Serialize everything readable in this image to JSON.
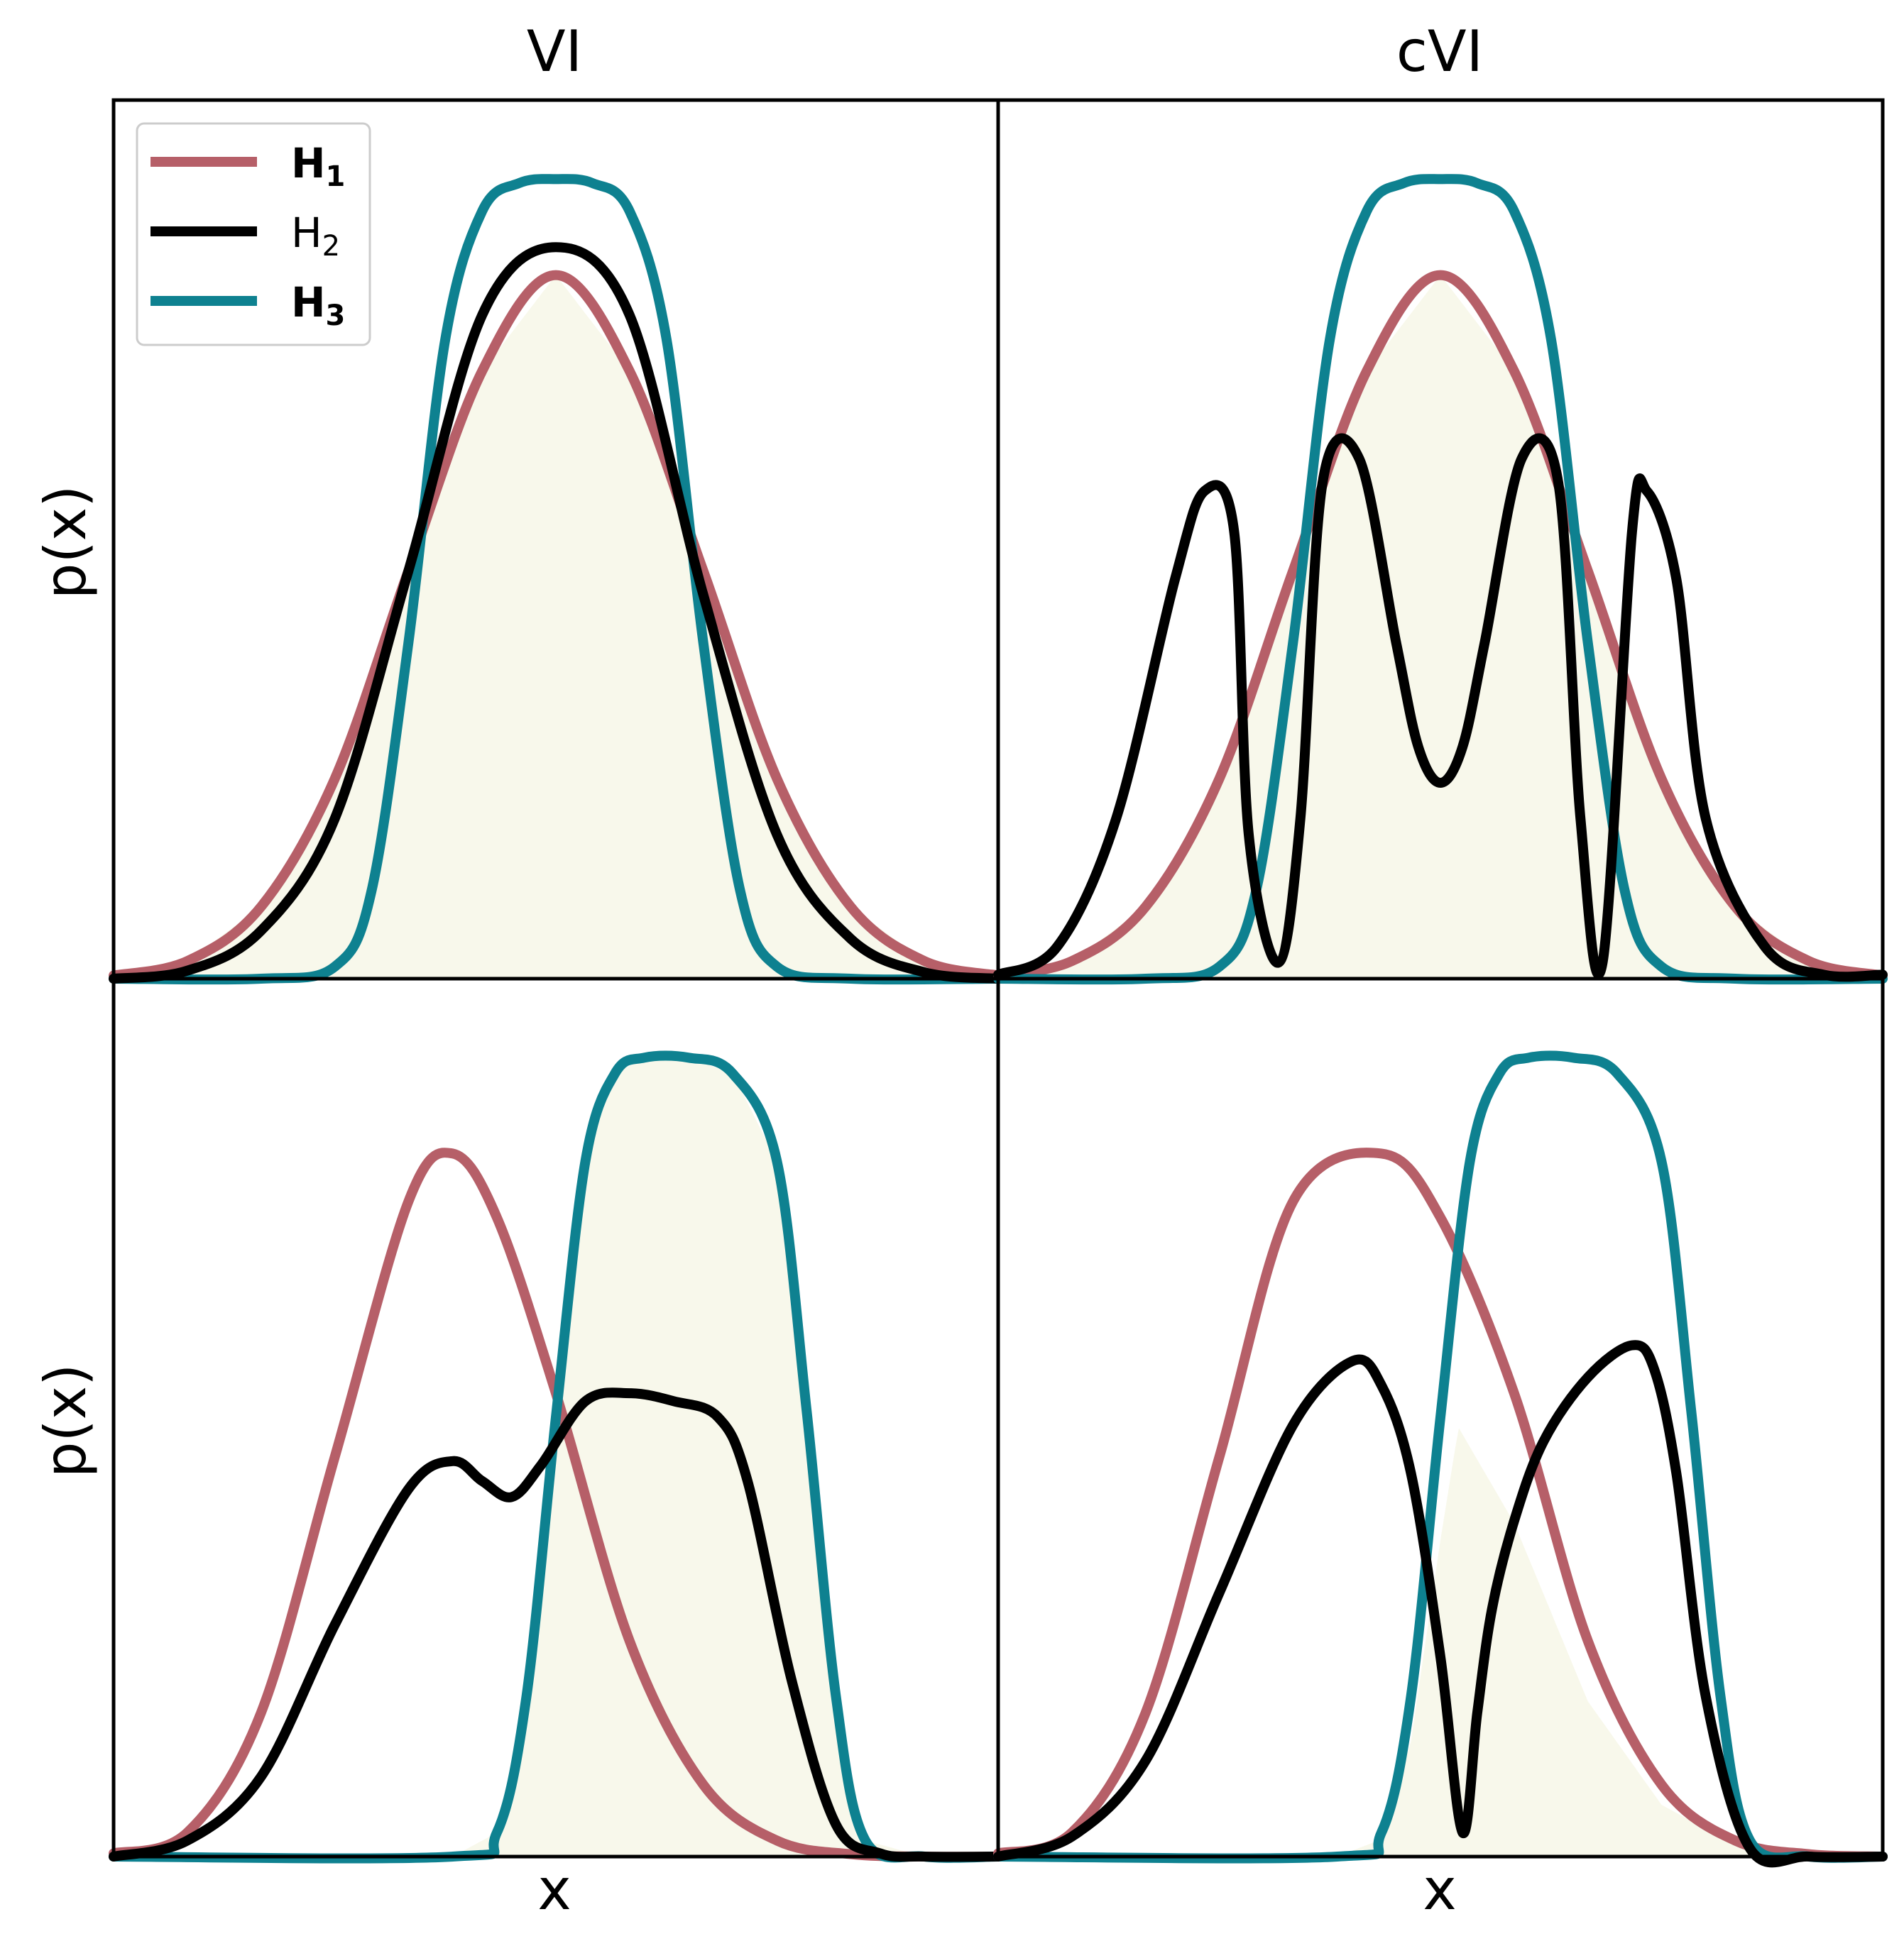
{
  "colors": {
    "h1": "#B65F68",
    "h2": "#000000",
    "h3": "#0E8190",
    "fill": "#F8F8EB"
  },
  "chart_data": [
    {
      "type": "line",
      "panel": "top-left",
      "title": "VI",
      "ylabel": "p(x)",
      "xlabel": "",
      "xlim": [
        -3.0,
        3.0
      ],
      "ylim": [
        0,
        1.0
      ],
      "shaded": "target density (same as H1)",
      "series": [
        {
          "name": "H1",
          "key": "h1",
          "x": [
            -3.0,
            -2.5,
            -2.0,
            -1.5,
            -1.0,
            -0.5,
            0.0,
            0.5,
            1.0,
            1.5,
            2.0,
            2.5,
            3.0
          ],
          "y": [
            0.004,
            0.022,
            0.09,
            0.25,
            0.51,
            0.76,
            0.88,
            0.76,
            0.51,
            0.25,
            0.09,
            0.022,
            0.004
          ]
        },
        {
          "name": "H2",
          "key": "h2",
          "x": [
            -3.0,
            -2.5,
            -2.0,
            -1.5,
            -1.0,
            -0.5,
            0.0,
            0.5,
            1.0,
            1.5,
            2.0,
            2.5,
            3.0
          ],
          "y": [
            0.0,
            0.01,
            0.06,
            0.2,
            0.51,
            0.83,
            0.915,
            0.83,
            0.48,
            0.18,
            0.05,
            0.008,
            0.0
          ]
        },
        {
          "name": "H3",
          "key": "h3",
          "x": [
            -3.0,
            -2.0,
            -1.5,
            -1.25,
            -1.0,
            -0.75,
            -0.5,
            -0.25,
            0.0,
            0.25,
            0.5,
            0.75,
            1.0,
            1.25,
            1.5,
            2.0,
            3.0
          ],
          "y": [
            0.0,
            0.0,
            0.015,
            0.11,
            0.42,
            0.8,
            0.96,
            0.995,
            1.0,
            0.995,
            0.96,
            0.8,
            0.42,
            0.11,
            0.015,
            0.0,
            0.0
          ]
        }
      ]
    },
    {
      "type": "line",
      "panel": "top-right",
      "title": "cVI",
      "ylabel": "",
      "xlabel": "",
      "xlim": [
        -3.0,
        3.0
      ],
      "ylim": [
        0,
        1.0
      ],
      "shaded": "target density (same as H1)",
      "series": [
        {
          "name": "H1",
          "key": "h1",
          "x": [
            -3.0,
            -2.5,
            -2.0,
            -1.5,
            -1.0,
            -0.5,
            0.0,
            0.5,
            1.0,
            1.5,
            2.0,
            2.5,
            3.0
          ],
          "y": [
            0.004,
            0.022,
            0.09,
            0.25,
            0.51,
            0.76,
            0.88,
            0.76,
            0.51,
            0.25,
            0.09,
            0.022,
            0.004
          ]
        },
        {
          "name": "H2",
          "key": "h2",
          "x": [
            -3.0,
            -2.6,
            -2.2,
            -1.8,
            -1.6,
            -1.4,
            -1.3,
            -1.1,
            -0.95,
            -0.8,
            -0.55,
            -0.3,
            -0.15,
            0.0,
            0.15,
            0.3,
            0.55,
            0.8,
            0.95,
            1.1,
            1.3,
            1.4,
            1.6,
            1.8,
            2.2,
            2.6,
            3.0
          ],
          "y": [
            0.005,
            0.04,
            0.2,
            0.5,
            0.61,
            0.56,
            0.18,
            0.02,
            0.2,
            0.62,
            0.65,
            0.42,
            0.29,
            0.245,
            0.29,
            0.42,
            0.65,
            0.62,
            0.2,
            0.02,
            0.56,
            0.61,
            0.5,
            0.2,
            0.04,
            0.005,
            0.005
          ]
        },
        {
          "name": "H3",
          "key": "h3",
          "x": [
            -3.0,
            -2.0,
            -1.5,
            -1.25,
            -1.0,
            -0.75,
            -0.5,
            -0.25,
            0.0,
            0.25,
            0.5,
            0.75,
            1.0,
            1.25,
            1.5,
            2.0,
            3.0
          ],
          "y": [
            0.0,
            0.0,
            0.015,
            0.11,
            0.42,
            0.8,
            0.96,
            0.995,
            1.0,
            0.995,
            0.96,
            0.8,
            0.42,
            0.11,
            0.015,
            0.0,
            0.0
          ]
        }
      ]
    },
    {
      "type": "line",
      "panel": "bottom-left",
      "title": "",
      "ylabel": "p(x)",
      "xlabel": "x",
      "xlim": [
        -3.0,
        3.0
      ],
      "ylim": [
        0,
        1.0
      ],
      "shaded": "target density (same as H3)",
      "series": [
        {
          "name": "H1",
          "key": "h1",
          "x": [
            -3.0,
            -2.5,
            -2.0,
            -1.5,
            -1.0,
            -0.7,
            -0.4,
            0.0,
            0.5,
            1.0,
            1.5,
            2.0,
            2.5,
            3.0
          ],
          "y": [
            0.004,
            0.03,
            0.18,
            0.5,
            0.82,
            0.88,
            0.8,
            0.58,
            0.27,
            0.09,
            0.02,
            0.003,
            0.0,
            0.0
          ]
        },
        {
          "name": "H2",
          "key": "h2",
          "x": [
            -3.0,
            -2.5,
            -2.0,
            -1.5,
            -1.0,
            -0.7,
            -0.5,
            -0.3,
            -0.1,
            0.2,
            0.5,
            0.8,
            1.1,
            1.3,
            1.6,
            1.9,
            2.2,
            2.5,
            3.0
          ],
          "y": [
            0.0,
            0.02,
            0.1,
            0.29,
            0.46,
            0.495,
            0.47,
            0.45,
            0.49,
            0.57,
            0.58,
            0.57,
            0.55,
            0.47,
            0.22,
            0.04,
            0.004,
            0.0,
            0.0
          ]
        },
        {
          "name": "H3",
          "key": "h3",
          "x": [
            -3.0,
            -0.7,
            -0.4,
            -0.2,
            0.0,
            0.2,
            0.4,
            0.6,
            0.9,
            1.2,
            1.5,
            1.7,
            1.9,
            2.1,
            2.5,
            3.0
          ],
          "y": [
            0.0,
            0.0,
            0.03,
            0.2,
            0.55,
            0.87,
            0.98,
            1.0,
            1.0,
            0.98,
            0.87,
            0.56,
            0.2,
            0.02,
            0.0,
            0.0
          ]
        }
      ]
    },
    {
      "type": "line",
      "panel": "bottom-right",
      "title": "",
      "ylabel": "",
      "xlabel": "x",
      "xlim": [
        -3.0,
        3.0
      ],
      "ylim": [
        0,
        1.0
      ],
      "shaded": "target density (product of H1 and H3)",
      "series": [
        {
          "name": "H1",
          "key": "h1",
          "x": [
            -3.0,
            -2.5,
            -2.0,
            -1.5,
            -1.0,
            -0.4,
            0.0,
            0.5,
            1.0,
            1.5,
            2.0,
            2.5,
            3.0
          ],
          "y": [
            0.004,
            0.03,
            0.18,
            0.5,
            0.82,
            0.88,
            0.8,
            0.58,
            0.27,
            0.09,
            0.02,
            0.003,
            0.0
          ]
        },
        {
          "name": "H2",
          "key": "h2",
          "x": [
            -3.0,
            -2.5,
            -2.0,
            -1.5,
            -1.0,
            -0.6,
            -0.4,
            -0.2,
            0.0,
            0.15,
            0.25,
            0.35,
            0.5,
            0.7,
            1.0,
            1.3,
            1.45,
            1.6,
            1.8,
            2.1,
            2.5,
            3.0
          ],
          "y": [
            0.0,
            0.025,
            0.12,
            0.33,
            0.54,
            0.62,
            0.59,
            0.48,
            0.25,
            0.03,
            0.18,
            0.31,
            0.42,
            0.52,
            0.6,
            0.64,
            0.61,
            0.48,
            0.2,
            0.01,
            0.0,
            0.0
          ]
        },
        {
          "name": "H3",
          "key": "h3",
          "x": [
            -3.0,
            -0.7,
            -0.4,
            -0.2,
            0.0,
            0.2,
            0.4,
            0.6,
            0.9,
            1.2,
            1.5,
            1.7,
            1.9,
            2.1,
            2.5,
            3.0
          ],
          "y": [
            0.0,
            0.0,
            0.03,
            0.2,
            0.55,
            0.87,
            0.98,
            1.0,
            1.0,
            0.98,
            0.87,
            0.56,
            0.2,
            0.02,
            0.0,
            0.0
          ]
        }
      ]
    }
  ],
  "legend": {
    "position": "upper-left of top-left panel",
    "items": [
      {
        "key": "h1",
        "letter": "H",
        "sub": "1",
        "bold": true
      },
      {
        "key": "h2",
        "letter": "H",
        "sub": "2",
        "bold": false
      },
      {
        "key": "h3",
        "letter": "H",
        "sub": "3",
        "bold": true
      }
    ]
  }
}
